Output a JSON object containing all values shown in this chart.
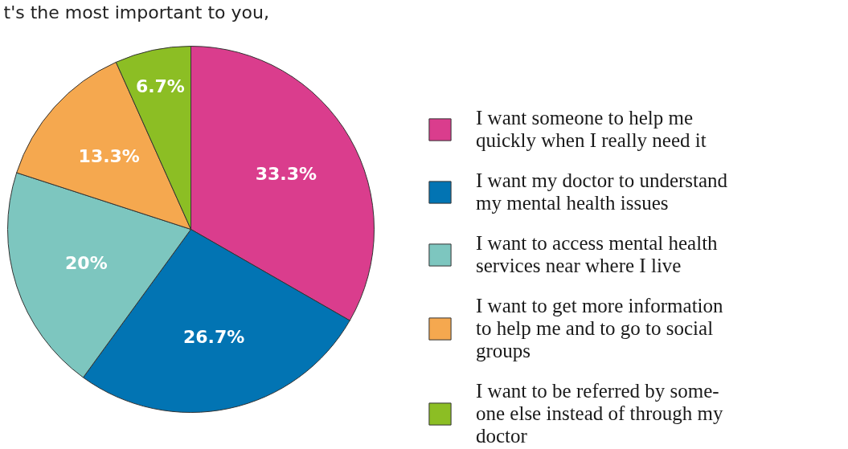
{
  "chart_data": {
    "type": "pie",
    "title": "t's the most important to you,",
    "categories": [
      "I want someone to help me\nquickly when I really need it",
      "I want my doctor to understand\nmy mental health issues",
      "I want to access mental health\nservices near where I live",
      "I want to get more information\nto help me and to go to social\ngroups",
      "I want to be referred by some-\none else instead of through my\ndoctor"
    ],
    "values": [
      33.3,
      26.7,
      20,
      13.3,
      6.7
    ],
    "colors": [
      "#da3d8d",
      "#0274b3",
      "#7dc6bf",
      "#f5a84f",
      "#8cbe24"
    ],
    "value_labels": [
      "33.3%",
      "26.7%",
      "20%",
      "13.3%",
      "6.7%"
    ],
    "legend": "right"
  }
}
